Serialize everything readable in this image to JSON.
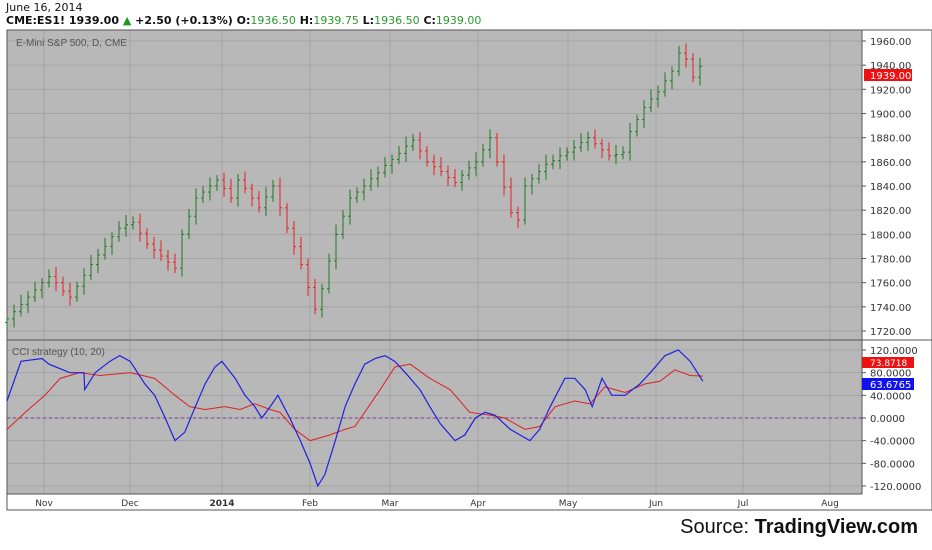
{
  "header": {
    "date": "June 16, 2014",
    "symbol": "CME:ES1!",
    "last": "1939.00",
    "change": "+2.50 (+0.13%)",
    "o_label": "O:",
    "o": "1936.50",
    "h_label": "H:",
    "h": "1939.75",
    "l_label": "L:",
    "l": "1936.50",
    "c_label": "C:",
    "c": "1939.00"
  },
  "main_pane": {
    "title": "E-Mini S&P 500, D, CME",
    "price_ticks": [
      "1960.00",
      "1940.00",
      "1920.00",
      "1900.00",
      "1880.00",
      "1860.00",
      "1840.00",
      "1820.00",
      "1800.00",
      "1780.00",
      "1760.00",
      "1740.00",
      "1720.00"
    ],
    "last_price_label": "1939.00"
  },
  "indicator_pane": {
    "title": "CCI strategy (10, 20)",
    "ticks": [
      "120.0000",
      "80.0000",
      "40.0000",
      "0.0000",
      "-40.0000",
      "-80.0000",
      "-120.0000"
    ],
    "signal_label": "73.8718",
    "cci_label": "63.6765"
  },
  "x_axis": [
    "Nov",
    "Dec",
    "2014",
    "Feb",
    "Mar",
    "Apr",
    "May",
    "Jun",
    "Jul",
    "Aug"
  ],
  "source": {
    "prefix": "Source: ",
    "brand": "TradingView.com"
  },
  "colors": {
    "up": "#1e7a1e",
    "down": "#e82020",
    "cci": "#2020e0",
    "signal": "#e02020",
    "bg": "#b8b8b8"
  },
  "chart_data": {
    "type": "ohlc+line",
    "closes": [
      1730,
      1736,
      1742,
      1748,
      1754,
      1760,
      1765,
      1760,
      1753,
      1748,
      1757,
      1766,
      1775,
      1783,
      1790,
      1798,
      1805,
      1808,
      1810,
      1801,
      1792,
      1787,
      1782,
      1777,
      1772,
      1800,
      1815,
      1830,
      1835,
      1840,
      1845,
      1838,
      1830,
      1845,
      1838,
      1830,
      1822,
      1831,
      1840,
      1822,
      1805,
      1790,
      1775,
      1756,
      1738,
      1755,
      1778,
      1800,
      1815,
      1830,
      1835,
      1840,
      1846,
      1851,
      1857,
      1862,
      1867,
      1873,
      1878,
      1869,
      1860,
      1856,
      1852,
      1847,
      1843,
      1849,
      1855,
      1860,
      1870,
      1880,
      1860,
      1839,
      1818,
      1812,
      1840,
      1846,
      1852,
      1858,
      1861,
      1865,
      1868,
      1872,
      1876,
      1880,
      1875,
      1870,
      1865,
      1866,
      1868,
      1885,
      1895,
      1905,
      1912,
      1918,
      1927,
      1935,
      1950,
      1945,
      1930,
      1939
    ],
    "price_range": [
      1715,
      1970
    ],
    "cci": [
      [
        0,
        30
      ],
      [
        2,
        100
      ],
      [
        5,
        105
      ],
      [
        6,
        95
      ],
      [
        9,
        80
      ],
      [
        11,
        80
      ],
      [
        11.1,
        50
      ],
      [
        12.6,
        80
      ],
      [
        14.7,
        100
      ],
      [
        16.1,
        110
      ],
      [
        17.6,
        100
      ],
      [
        19.7,
        60
      ],
      [
        21.1,
        40
      ],
      [
        22.6,
        0
      ],
      [
        24,
        -40
      ],
      [
        25.4,
        -25
      ],
      [
        26.9,
        20
      ],
      [
        28.3,
        60
      ],
      [
        29.7,
        90
      ],
      [
        30.7,
        100
      ],
      [
        32.6,
        70
      ],
      [
        34,
        40
      ],
      [
        35.4,
        20
      ],
      [
        36.4,
        0
      ],
      [
        37.6,
        20
      ],
      [
        38.7,
        40
      ],
      [
        40.4,
        0
      ],
      [
        41.9,
        -40
      ],
      [
        43.3,
        -80
      ],
      [
        44.4,
        -120
      ],
      [
        45.4,
        -100
      ],
      [
        46.9,
        -40
      ],
      [
        48.3,
        20
      ],
      [
        49.7,
        60
      ],
      [
        51.1,
        95
      ],
      [
        52.6,
        105
      ],
      [
        54,
        110
      ],
      [
        55.4,
        100
      ],
      [
        56.9,
        80
      ],
      [
        59,
        50
      ],
      [
        60.4,
        20
      ],
      [
        61.9,
        -10
      ],
      [
        64,
        -40
      ],
      [
        65.4,
        -30
      ],
      [
        66.9,
        0
      ],
      [
        68.3,
        10
      ],
      [
        69.7,
        5
      ],
      [
        71.9,
        -20
      ],
      [
        74.7,
        -40
      ],
      [
        76.1,
        -20
      ],
      [
        77.6,
        20
      ],
      [
        79.7,
        70
      ],
      [
        81.1,
        70
      ],
      [
        82.6,
        50
      ],
      [
        83.6,
        20
      ],
      [
        85,
        70
      ],
      [
        86.4,
        40
      ],
      [
        88.3,
        40
      ],
      [
        90.4,
        60
      ],
      [
        91.9,
        80
      ],
      [
        94,
        110
      ],
      [
        95.9,
        120
      ],
      [
        97.6,
        100
      ],
      [
        99.4,
        65
      ]
    ],
    "signal": [
      [
        0,
        -20
      ],
      [
        2.6,
        10
      ],
      [
        5.4,
        40
      ],
      [
        7.6,
        70
      ],
      [
        10.4,
        80
      ],
      [
        13.3,
        75
      ],
      [
        17.6,
        80
      ],
      [
        21.1,
        70
      ],
      [
        24,
        40
      ],
      [
        26.1,
        20
      ],
      [
        28.3,
        15
      ],
      [
        31.1,
        20
      ],
      [
        33.3,
        15
      ],
      [
        35.4,
        25
      ],
      [
        37.6,
        15
      ],
      [
        39,
        10
      ],
      [
        41.1,
        -20
      ],
      [
        43.3,
        -40
      ],
      [
        46.1,
        -30
      ],
      [
        48.3,
        -20
      ],
      [
        49.7,
        -15
      ],
      [
        51.1,
        10
      ],
      [
        53.3,
        50
      ],
      [
        55.4,
        90
      ],
      [
        57.6,
        95
      ],
      [
        60.4,
        70
      ],
      [
        63.3,
        50
      ],
      [
        66.1,
        10
      ],
      [
        69,
        5
      ],
      [
        71.1,
        0
      ],
      [
        74,
        -20
      ],
      [
        76.1,
        -15
      ],
      [
        78.3,
        20
      ],
      [
        81.1,
        30
      ],
      [
        83.3,
        25
      ],
      [
        85.4,
        55
      ],
      [
        88.3,
        45
      ],
      [
        91.1,
        60
      ],
      [
        93.3,
        65
      ],
      [
        95.4,
        85
      ],
      [
        97.6,
        75
      ],
      [
        99.4,
        73.9
      ]
    ],
    "cci_range": [
      -135,
      135
    ]
  }
}
